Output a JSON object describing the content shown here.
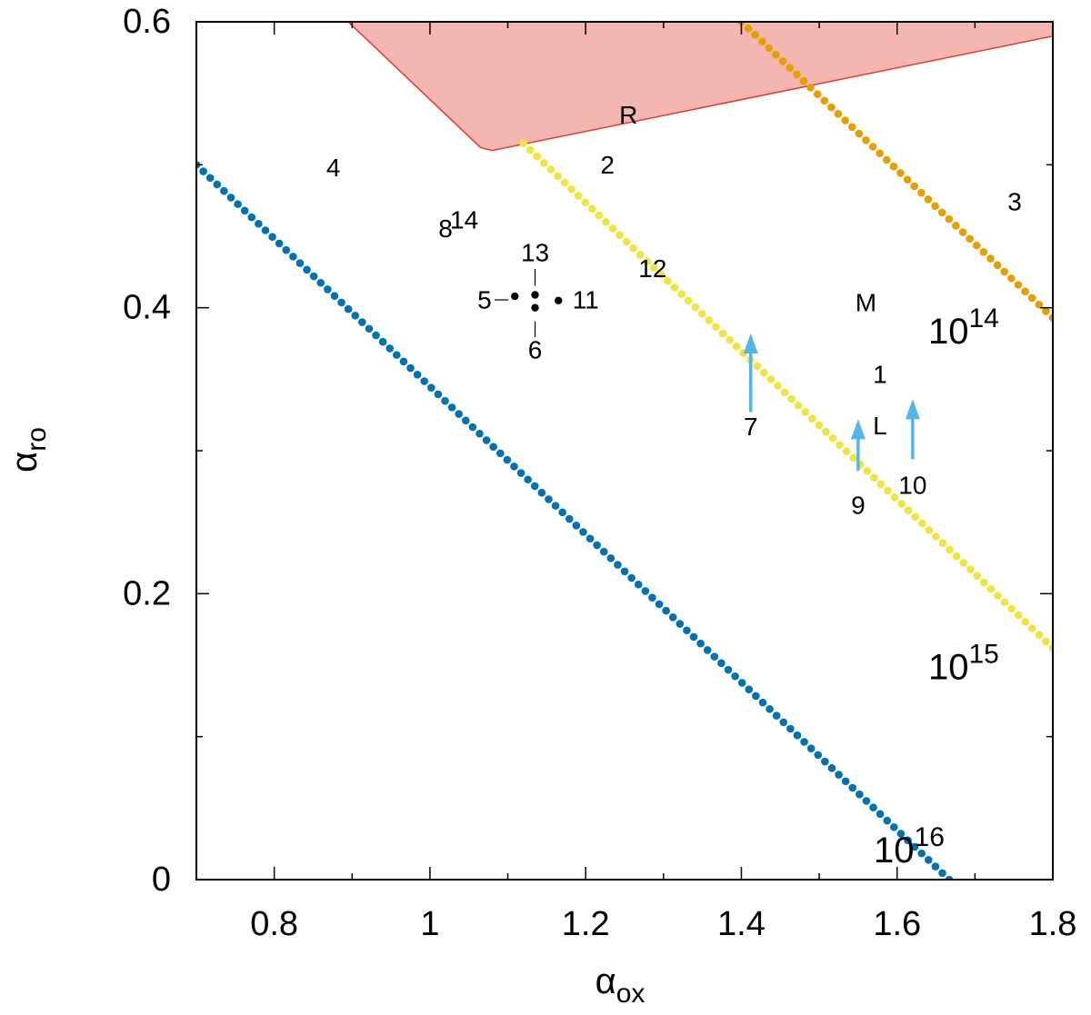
{
  "chart_data": {
    "type": "scatter",
    "title": "",
    "xlabel": {
      "base": "α",
      "sub": "ox"
    },
    "ylabel": {
      "base": "α",
      "sub": "ro"
    },
    "xlim": [
      0.7,
      1.8
    ],
    "ylim": [
      0,
      0.6
    ],
    "x_ticks": [
      0.8,
      1,
      1.2,
      1.4,
      1.6,
      1.8
    ],
    "x_tick_labels": [
      "0.8",
      "1",
      "1.2",
      "1.4",
      "1.6",
      "1.8"
    ],
    "x_minor_ticks": [
      0.9,
      1.1,
      1.3,
      1.5,
      1.7
    ],
    "y_ticks": [
      0,
      0.2,
      0.4,
      0.6
    ],
    "y_tick_labels": [
      "0",
      "0.2",
      "0.4",
      "0.6"
    ],
    "y_minor_ticks": [
      0.1,
      0.3,
      0.5
    ],
    "grid": false,
    "series": [
      {
        "label_base": "10",
        "label_exp": "16",
        "color": "#0072B2",
        "x": [
          0.7,
          1.667
        ],
        "y": [
          0.5,
          0.0
        ],
        "label_at": [
          1.57,
          0.012
        ]
      },
      {
        "label_base": "10",
        "label_exp": "15",
        "color": "#F0E442",
        "x": [
          1.12,
          1.8
        ],
        "y": [
          0.515,
          0.162
        ],
        "label_at": [
          1.64,
          0.14
        ]
      },
      {
        "label_base": "10",
        "label_exp": "14",
        "color": "#E69F00",
        "x": [
          1.4,
          1.8
        ],
        "y": [
          0.6,
          0.393
        ],
        "label_at": [
          1.64,
          0.375
        ]
      }
    ],
    "region": {
      "label": "R",
      "label_at": [
        1.255,
        0.535
      ],
      "fill": "#F4B6B0",
      "stroke": "#E8382C",
      "polygon": [
        [
          0.895,
          0.6
        ],
        [
          1.8,
          0.6
        ],
        [
          1.8,
          0.59
        ],
        [
          1.08,
          0.51
        ],
        [
          1.065,
          0.512
        ]
      ]
    },
    "points": [
      {
        "label": "5",
        "x": 1.109,
        "y": 0.408,
        "label_at": [
          1.07,
          0.4055
        ],
        "tick": "left"
      },
      {
        "label": "13",
        "x": 1.135,
        "y": 0.409,
        "label_at": [
          1.135,
          0.4385
        ],
        "tick": "up"
      },
      {
        "label": "6",
        "x": 1.135,
        "y": 0.4,
        "label_at": [
          1.135,
          0.3705
        ],
        "tick": "down"
      },
      {
        "label": "11",
        "x": 1.165,
        "y": 0.405,
        "label_at": [
          1.2,
          0.4055
        ],
        "tick": "right"
      }
    ],
    "arrows": [
      {
        "label": "7",
        "x": 1.412,
        "y_from": 0.327,
        "y_to": 0.382,
        "label_at": [
          1.412,
          0.317
        ],
        "color": "#56B4E9"
      },
      {
        "label": "9",
        "x": 1.55,
        "y_from": 0.286,
        "y_to": 0.322,
        "label_at": [
          1.55,
          0.262
        ],
        "color": "#56B4E9"
      },
      {
        "label": "10",
        "x": 1.62,
        "y_from": 0.294,
        "y_to": 0.336,
        "label_at": [
          1.62,
          0.276
        ],
        "color": "#56B4E9"
      }
    ],
    "labels": [
      {
        "text": "4",
        "x": 0.876,
        "y": 0.498
      },
      {
        "text": "2",
        "x": 1.228,
        "y": 0.5
      },
      {
        "text": "3",
        "x": 1.751,
        "y": 0.474
      },
      {
        "text": "8",
        "x": 1.02,
        "y": 0.4555
      },
      {
        "text": "14",
        "x": 1.044,
        "y": 0.4615
      },
      {
        "text": "12",
        "x": 1.286,
        "y": 0.4275
      },
      {
        "text": "M",
        "x": 1.56,
        "y": 0.4035
      },
      {
        "text": "1",
        "x": 1.578,
        "y": 0.3535
      },
      {
        "text": "L",
        "x": 1.578,
        "y": 0.3175
      }
    ]
  }
}
